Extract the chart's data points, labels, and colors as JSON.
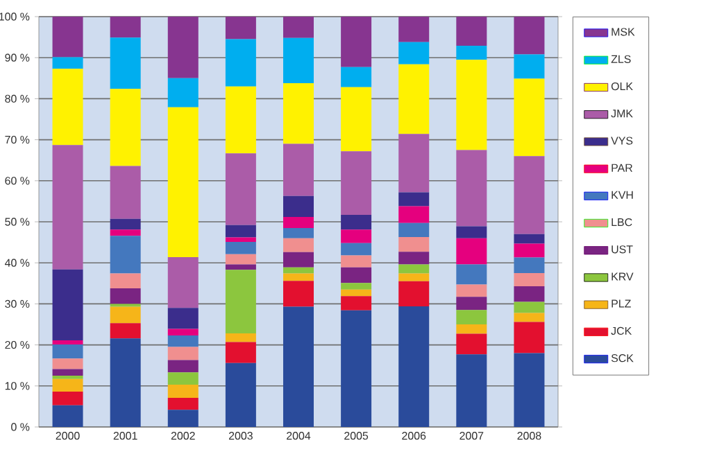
{
  "chart_data": {
    "type": "bar",
    "stacked": true,
    "categories": [
      "2000",
      "2001",
      "2002",
      "2003",
      "2004",
      "2005",
      "2006",
      "2007",
      "2008"
    ],
    "series": [
      {
        "name": "SCK",
        "color": "#2a4b9b",
        "values": [
          5.3,
          21.6,
          4.2,
          15.6,
          29.3,
          28.4,
          29.4,
          17.7,
          18.0
        ]
      },
      {
        "name": "JCK",
        "color": "#e3102f",
        "values": [
          3.3,
          3.7,
          2.9,
          5.1,
          6.3,
          3.5,
          6.1,
          5.0,
          7.6
        ]
      },
      {
        "name": "PLZ",
        "color": "#f6b519",
        "values": [
          3.1,
          4.0,
          3.2,
          2.1,
          1.8,
          1.6,
          1.9,
          2.3,
          2.2
        ]
      },
      {
        "name": "KRV",
        "color": "#8cc63e",
        "values": [
          0.8,
          0.7,
          3.0,
          15.5,
          1.5,
          1.6,
          2.2,
          3.5,
          2.7
        ]
      },
      {
        "name": "UST",
        "color": "#7a2482",
        "values": [
          1.6,
          3.8,
          3.0,
          1.3,
          3.7,
          3.8,
          3.1,
          3.2,
          3.8
        ]
      },
      {
        "name": "LBC",
        "color": "#f08f8f",
        "values": [
          2.6,
          3.6,
          3.2,
          2.5,
          3.4,
          2.9,
          3.6,
          3.0,
          3.2
        ]
      },
      {
        "name": "KVH",
        "color": "#4478be",
        "values": [
          3.4,
          9.2,
          2.8,
          3.0,
          2.5,
          3.0,
          3.4,
          4.9,
          3.8
        ]
      },
      {
        "name": "PAR",
        "color": "#e5007e",
        "values": [
          1.0,
          1.5,
          1.6,
          1.1,
          2.7,
          3.3,
          4.1,
          6.4,
          3.4
        ]
      },
      {
        "name": "VYS",
        "color": "#3b2d8c",
        "values": [
          17.3,
          2.6,
          5.1,
          3.0,
          5.1,
          3.6,
          3.4,
          2.9,
          2.3
        ]
      },
      {
        "name": "JMK",
        "color": "#ab5ca8",
        "values": [
          30.3,
          12.9,
          12.4,
          17.5,
          12.7,
          15.5,
          14.2,
          18.6,
          19.0
        ]
      },
      {
        "name": "OLK",
        "color": "#fff200",
        "values": [
          18.6,
          18.8,
          36.5,
          16.3,
          14.8,
          15.6,
          17.0,
          22.0,
          18.9
        ]
      },
      {
        "name": "ZLS",
        "color": "#00aeef",
        "values": [
          2.8,
          12.5,
          7.1,
          11.5,
          11.0,
          4.9,
          5.4,
          3.4,
          5.9
        ]
      },
      {
        "name": "MSK",
        "color": "#873590",
        "values": [
          9.9,
          5.1,
          15.0,
          5.5,
          5.2,
          12.3,
          6.2,
          7.1,
          9.2
        ]
      }
    ],
    "ylim": [
      0,
      100
    ],
    "yticks": [
      {
        "value": 0,
        "label": "0 %"
      },
      {
        "value": 10,
        "label": "10 %"
      },
      {
        "value": 20,
        "label": "20 %"
      },
      {
        "value": 30,
        "label": "30 %"
      },
      {
        "value": 40,
        "label": "40 %"
      },
      {
        "value": 50,
        "label": "50 %"
      },
      {
        "value": 60,
        "label": "60 %"
      },
      {
        "value": 70,
        "label": "70 %"
      },
      {
        "value": 80,
        "label": "80 %"
      },
      {
        "value": 90,
        "label": "90 %"
      },
      {
        "value": 100,
        "label": "100 %"
      }
    ],
    "grid": "y",
    "legend": "right"
  }
}
